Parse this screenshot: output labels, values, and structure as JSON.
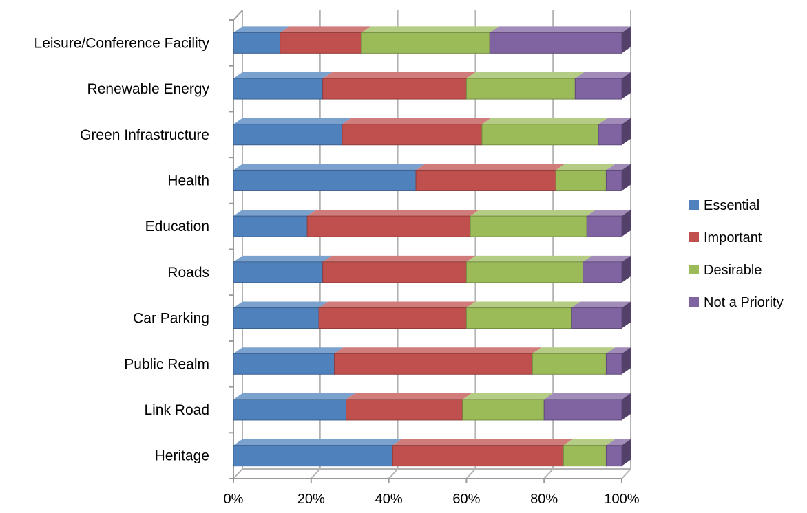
{
  "chart_data": {
    "type": "bar",
    "orientation": "horizontal",
    "stacked": "100%",
    "three_d": true,
    "categories": [
      "Leisure/Conference Facility",
      "Renewable Energy",
      "Green Infrastructure",
      "Health",
      "Education",
      "Roads",
      "Car Parking",
      "Public Realm",
      "Link Road",
      "Heritage"
    ],
    "series": [
      {
        "name": "Essential",
        "color": "#4f81bd",
        "values": [
          12,
          23,
          28,
          47,
          19,
          23,
          22,
          26,
          29,
          41
        ]
      },
      {
        "name": "Important",
        "color": "#c0504d",
        "values": [
          21,
          37,
          36,
          36,
          42,
          37,
          38,
          51,
          30,
          44
        ]
      },
      {
        "name": "Desirable",
        "color": "#9bbb59",
        "values": [
          33,
          28,
          30,
          13,
          30,
          30,
          27,
          19,
          21,
          11
        ]
      },
      {
        "name": "Not a Priority",
        "color": "#8064a2",
        "values": [
          34,
          12,
          6,
          4,
          9,
          10,
          13,
          4,
          20,
          4
        ]
      }
    ],
    "x_ticks": [
      "0%",
      "20%",
      "40%",
      "60%",
      "80%",
      "100%"
    ],
    "xlim": [
      0,
      100
    ],
    "grid": true,
    "legend_position": "right"
  }
}
